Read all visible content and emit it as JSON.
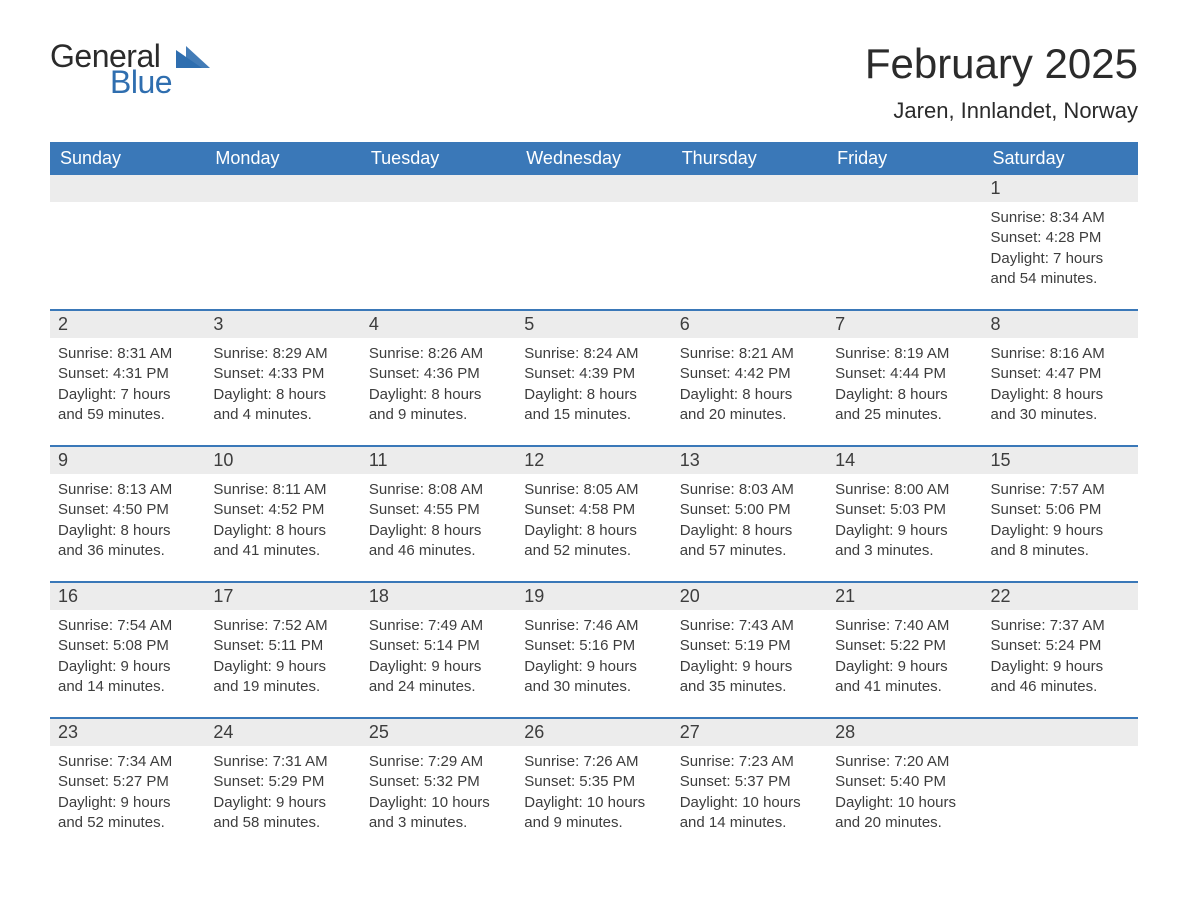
{
  "logo": {
    "general": "General",
    "blue": "Blue",
    "tri_color": "#2f6eaf"
  },
  "header": {
    "month_title": "February 2025",
    "location": "Jaren, Innlandet, Norway"
  },
  "colors": {
    "header_bg": "#3a78b8",
    "header_text": "#ffffff",
    "daynum_bg": "#ececec",
    "text": "#3d3d3d",
    "rule": "#3a78b8",
    "page_bg": "#ffffff"
  },
  "typography": {
    "month_title_fontsize": 42,
    "location_fontsize": 22,
    "weekday_fontsize": 18,
    "daynum_fontsize": 18,
    "detail_fontsize": 15,
    "font_family": "Segoe UI"
  },
  "calendar": {
    "layout": {
      "columns": 7,
      "rows": 5,
      "first_day_slot": 6
    },
    "weekdays": [
      "Sunday",
      "Monday",
      "Tuesday",
      "Wednesday",
      "Thursday",
      "Friday",
      "Saturday"
    ],
    "weeks": [
      [
        null,
        null,
        null,
        null,
        null,
        null,
        {
          "n": "1",
          "sr": "Sunrise: 8:34 AM",
          "ss": "Sunset: 4:28 PM",
          "d1": "Daylight: 7 hours",
          "d2": "and 54 minutes."
        }
      ],
      [
        {
          "n": "2",
          "sr": "Sunrise: 8:31 AM",
          "ss": "Sunset: 4:31 PM",
          "d1": "Daylight: 7 hours",
          "d2": "and 59 minutes."
        },
        {
          "n": "3",
          "sr": "Sunrise: 8:29 AM",
          "ss": "Sunset: 4:33 PM",
          "d1": "Daylight: 8 hours",
          "d2": "and 4 minutes."
        },
        {
          "n": "4",
          "sr": "Sunrise: 8:26 AM",
          "ss": "Sunset: 4:36 PM",
          "d1": "Daylight: 8 hours",
          "d2": "and 9 minutes."
        },
        {
          "n": "5",
          "sr": "Sunrise: 8:24 AM",
          "ss": "Sunset: 4:39 PM",
          "d1": "Daylight: 8 hours",
          "d2": "and 15 minutes."
        },
        {
          "n": "6",
          "sr": "Sunrise: 8:21 AM",
          "ss": "Sunset: 4:42 PM",
          "d1": "Daylight: 8 hours",
          "d2": "and 20 minutes."
        },
        {
          "n": "7",
          "sr": "Sunrise: 8:19 AM",
          "ss": "Sunset: 4:44 PM",
          "d1": "Daylight: 8 hours",
          "d2": "and 25 minutes."
        },
        {
          "n": "8",
          "sr": "Sunrise: 8:16 AM",
          "ss": "Sunset: 4:47 PM",
          "d1": "Daylight: 8 hours",
          "d2": "and 30 minutes."
        }
      ],
      [
        {
          "n": "9",
          "sr": "Sunrise: 8:13 AM",
          "ss": "Sunset: 4:50 PM",
          "d1": "Daylight: 8 hours",
          "d2": "and 36 minutes."
        },
        {
          "n": "10",
          "sr": "Sunrise: 8:11 AM",
          "ss": "Sunset: 4:52 PM",
          "d1": "Daylight: 8 hours",
          "d2": "and 41 minutes."
        },
        {
          "n": "11",
          "sr": "Sunrise: 8:08 AM",
          "ss": "Sunset: 4:55 PM",
          "d1": "Daylight: 8 hours",
          "d2": "and 46 minutes."
        },
        {
          "n": "12",
          "sr": "Sunrise: 8:05 AM",
          "ss": "Sunset: 4:58 PM",
          "d1": "Daylight: 8 hours",
          "d2": "and 52 minutes."
        },
        {
          "n": "13",
          "sr": "Sunrise: 8:03 AM",
          "ss": "Sunset: 5:00 PM",
          "d1": "Daylight: 8 hours",
          "d2": "and 57 minutes."
        },
        {
          "n": "14",
          "sr": "Sunrise: 8:00 AM",
          "ss": "Sunset: 5:03 PM",
          "d1": "Daylight: 9 hours",
          "d2": "and 3 minutes."
        },
        {
          "n": "15",
          "sr": "Sunrise: 7:57 AM",
          "ss": "Sunset: 5:06 PM",
          "d1": "Daylight: 9 hours",
          "d2": "and 8 minutes."
        }
      ],
      [
        {
          "n": "16",
          "sr": "Sunrise: 7:54 AM",
          "ss": "Sunset: 5:08 PM",
          "d1": "Daylight: 9 hours",
          "d2": "and 14 minutes."
        },
        {
          "n": "17",
          "sr": "Sunrise: 7:52 AM",
          "ss": "Sunset: 5:11 PM",
          "d1": "Daylight: 9 hours",
          "d2": "and 19 minutes."
        },
        {
          "n": "18",
          "sr": "Sunrise: 7:49 AM",
          "ss": "Sunset: 5:14 PM",
          "d1": "Daylight: 9 hours",
          "d2": "and 24 minutes."
        },
        {
          "n": "19",
          "sr": "Sunrise: 7:46 AM",
          "ss": "Sunset: 5:16 PM",
          "d1": "Daylight: 9 hours",
          "d2": "and 30 minutes."
        },
        {
          "n": "20",
          "sr": "Sunrise: 7:43 AM",
          "ss": "Sunset: 5:19 PM",
          "d1": "Daylight: 9 hours",
          "d2": "and 35 minutes."
        },
        {
          "n": "21",
          "sr": "Sunrise: 7:40 AM",
          "ss": "Sunset: 5:22 PM",
          "d1": "Daylight: 9 hours",
          "d2": "and 41 minutes."
        },
        {
          "n": "22",
          "sr": "Sunrise: 7:37 AM",
          "ss": "Sunset: 5:24 PM",
          "d1": "Daylight: 9 hours",
          "d2": "and 46 minutes."
        }
      ],
      [
        {
          "n": "23",
          "sr": "Sunrise: 7:34 AM",
          "ss": "Sunset: 5:27 PM",
          "d1": "Daylight: 9 hours",
          "d2": "and 52 minutes."
        },
        {
          "n": "24",
          "sr": "Sunrise: 7:31 AM",
          "ss": "Sunset: 5:29 PM",
          "d1": "Daylight: 9 hours",
          "d2": "and 58 minutes."
        },
        {
          "n": "25",
          "sr": "Sunrise: 7:29 AM",
          "ss": "Sunset: 5:32 PM",
          "d1": "Daylight: 10 hours",
          "d2": "and 3 minutes."
        },
        {
          "n": "26",
          "sr": "Sunrise: 7:26 AM",
          "ss": "Sunset: 5:35 PM",
          "d1": "Daylight: 10 hours",
          "d2": "and 9 minutes."
        },
        {
          "n": "27",
          "sr": "Sunrise: 7:23 AM",
          "ss": "Sunset: 5:37 PM",
          "d1": "Daylight: 10 hours",
          "d2": "and 14 minutes."
        },
        {
          "n": "28",
          "sr": "Sunrise: 7:20 AM",
          "ss": "Sunset: 5:40 PM",
          "d1": "Daylight: 10 hours",
          "d2": "and 20 minutes."
        },
        null
      ]
    ]
  }
}
